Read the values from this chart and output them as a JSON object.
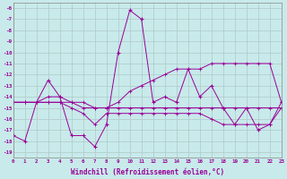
{
  "xlabel": "Windchill (Refroidissement éolien,°C)",
  "background_color": "#c8eaea",
  "grid_color": "#b0c8c8",
  "line_color": "#990099",
  "x": [
    0,
    1,
    2,
    3,
    4,
    5,
    6,
    7,
    8,
    9,
    10,
    11,
    12,
    13,
    14,
    15,
    16,
    17,
    18,
    19,
    20,
    21,
    22,
    23
  ],
  "series1": [
    -17.5,
    -18.0,
    -14.5,
    -12.5,
    -14.0,
    -17.5,
    -17.5,
    -18.5,
    -16.5,
    -10.0,
    -6.2,
    -7.0,
    -14.5,
    -14.0,
    -14.5,
    -11.5,
    -14.0,
    -13.0,
    -15.0,
    -16.5,
    -15.0,
    -17.0,
    -16.5,
    -14.5
  ],
  "series2": [
    -14.5,
    -14.5,
    -14.5,
    -14.5,
    -14.5,
    -14.5,
    -15.0,
    -15.0,
    -15.0,
    -15.0,
    -15.0,
    -15.0,
    -15.0,
    -15.0,
    -15.0,
    -15.0,
    -15.0,
    -15.0,
    -15.0,
    -15.0,
    -15.0,
    -15.0,
    -15.0,
    -15.0
  ],
  "series3": [
    -14.5,
    -14.5,
    -14.5,
    -14.0,
    -14.0,
    -14.5,
    -14.5,
    -15.0,
    -15.0,
    -14.5,
    -13.5,
    -13.0,
    -12.5,
    -12.0,
    -11.5,
    -11.5,
    -11.5,
    -11.0,
    -11.0,
    -11.0,
    -11.0,
    -11.0,
    -11.0,
    -14.5
  ],
  "series4": [
    -14.5,
    -14.5,
    -14.5,
    -14.5,
    -14.5,
    -15.0,
    -15.5,
    -16.5,
    -15.5,
    -15.5,
    -15.5,
    -15.5,
    -15.5,
    -15.5,
    -15.5,
    -15.5,
    -15.5,
    -16.0,
    -16.5,
    -16.5,
    -16.5,
    -16.5,
    -16.5,
    -15.0
  ],
  "ylim": [
    -19.5,
    -5.5
  ],
  "xlim": [
    0,
    23
  ],
  "yticks": [
    -6,
    -7,
    -8,
    -9,
    -10,
    -11,
    -12,
    -13,
    -14,
    -15,
    -16,
    -17,
    -18,
    -19
  ]
}
